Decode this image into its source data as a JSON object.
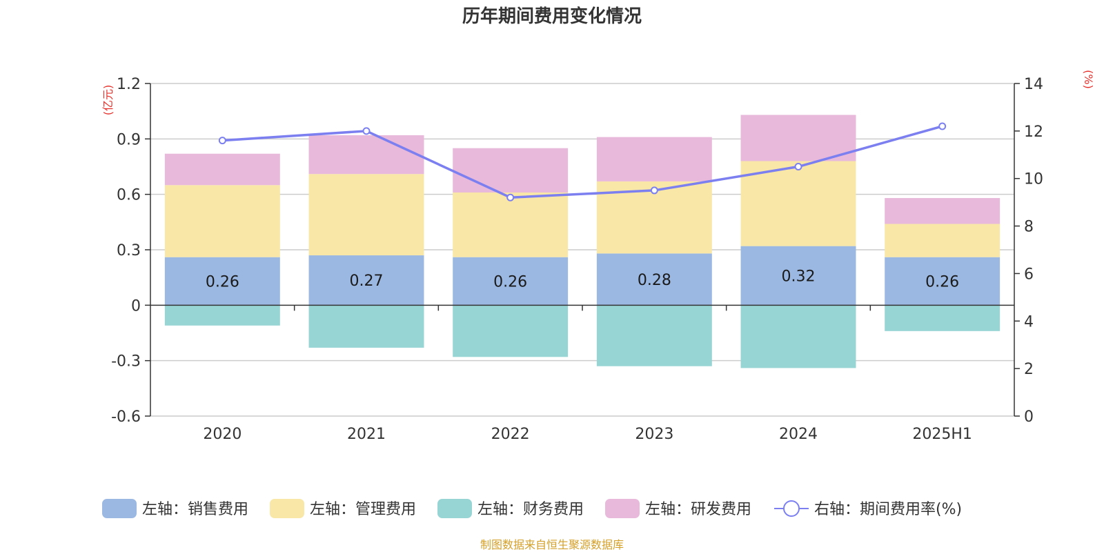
{
  "chart_data": {
    "type": "bar",
    "title": "历年期间费用变化情况",
    "categories": [
      "2020",
      "2021",
      "2022",
      "2023",
      "2024",
      "2025H1"
    ],
    "left_axis": {
      "unit": "(亿元)",
      "ylim": [
        -0.6,
        1.2
      ],
      "ticks": [
        -0.6,
        -0.3,
        0,
        0.3,
        0.6,
        0.9,
        1.2
      ],
      "tick_labels": [
        "-0.6",
        "-0.3",
        "0",
        "0.3",
        "0.6",
        "0.9",
        "1.2"
      ]
    },
    "right_axis": {
      "unit": "(%)",
      "ylim": [
        0,
        14
      ],
      "ticks": [
        0,
        2,
        4,
        6,
        8,
        10,
        12,
        14
      ],
      "tick_labels": [
        "0",
        "2",
        "4",
        "6",
        "8",
        "10",
        "12",
        "14"
      ]
    },
    "stacked": true,
    "series": [
      {
        "name": "左轴：销售费用",
        "type": "bar",
        "axis": "left",
        "color": "#9bb8e2",
        "values": [
          0.26,
          0.27,
          0.26,
          0.28,
          0.32,
          0.26
        ],
        "labels": [
          "0.26",
          "0.27",
          "0.26",
          "0.28",
          "0.32",
          "0.26"
        ]
      },
      {
        "name": "左轴：管理费用",
        "type": "bar",
        "axis": "left",
        "color": "#f8e7a7",
        "values": [
          0.39,
          0.44,
          0.35,
          0.39,
          0.46,
          0.18
        ]
      },
      {
        "name": "左轴：财务费用",
        "type": "bar",
        "axis": "left",
        "color": "#97d4d4",
        "values": [
          -0.11,
          -0.23,
          -0.28,
          -0.33,
          -0.34,
          -0.14
        ]
      },
      {
        "name": "左轴：研发费用",
        "type": "bar",
        "axis": "left",
        "color": "#e8b9da",
        "values": [
          0.17,
          0.21,
          0.24,
          0.24,
          0.25,
          0.14
        ]
      },
      {
        "name": "右轴：期间费用率(%)",
        "type": "line",
        "axis": "right",
        "color": "#7b7ff0",
        "values": [
          11.6,
          12.0,
          9.2,
          9.5,
          10.5,
          12.2
        ]
      }
    ],
    "grid": true,
    "legend_position": "bottom"
  },
  "source_note": "制图数据来自恒生聚源数据库",
  "colors": {
    "axis": "#333333",
    "grid": "#cccccc",
    "unit": "#e5322d",
    "source": "#d4a02a"
  }
}
